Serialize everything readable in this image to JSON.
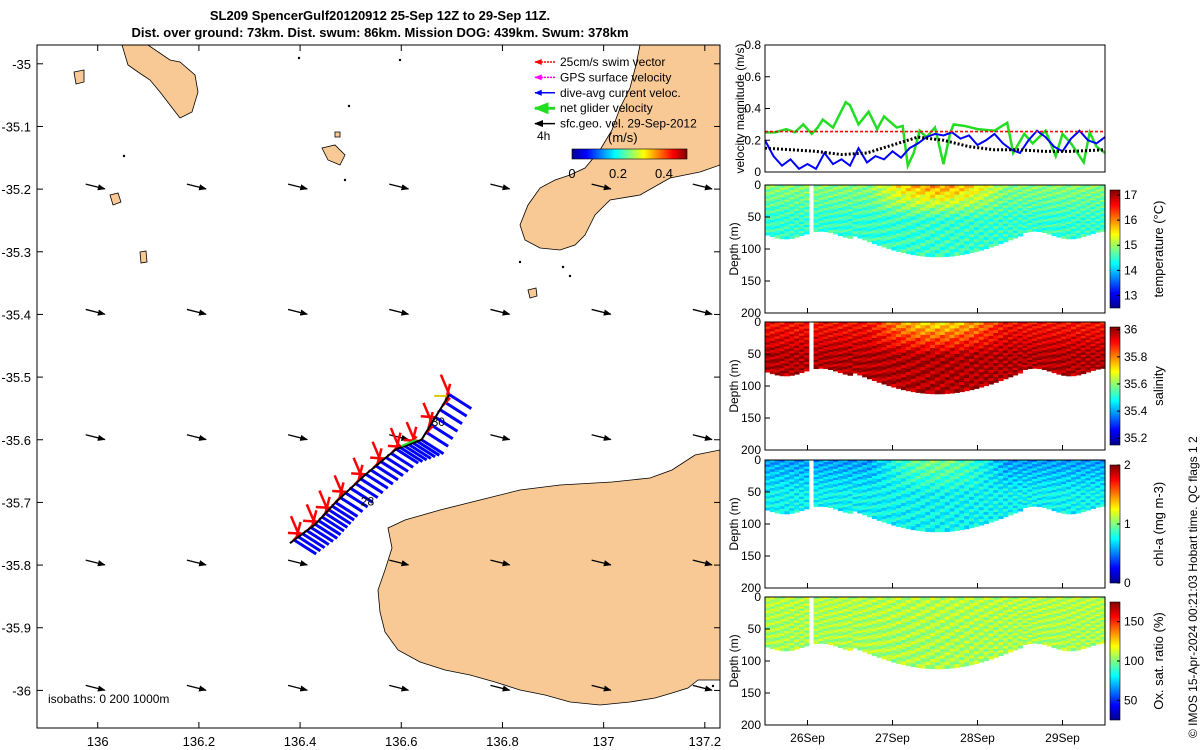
{
  "title": {
    "line1": "SL209 SpencerGulf20120912 25-Sep 12Z to 29-Sep 11Z.",
    "line2": "Dist. over ground: 73km. Dist. swum: 86km. Mission DOG: 439km. Swum: 378km"
  },
  "credit": "© IMOS 15-Apr-2024 00:21:03 Hobart time. QC flags 1 2",
  "colors": {
    "land": "#f9c995",
    "swim": "#ff0000",
    "gps": "#ff00ff",
    "current": "#0000ff",
    "net": "#22dd22",
    "geo": "#000000"
  },
  "chart_data": [
    {
      "type": "map",
      "xticks": [
        "136",
        "136.2",
        "136.4",
        "136.6",
        "136.8",
        "137",
        "137.2"
      ],
      "yticks": [
        "-35",
        "-35.1",
        "-35.2",
        "-35.3",
        "-35.4",
        "-35.5",
        "-35.6",
        "-35.7",
        "-35.8",
        "-35.9",
        "-36"
      ],
      "xlim": [
        135.88,
        137.23
      ],
      "ylim": [
        -36.06,
        -34.97
      ],
      "legend": {
        "entries": [
          {
            "label": "25cm/s swim vector",
            "color": "#ff0000",
            "style": "dotted"
          },
          {
            "label": "GPS surface velocity",
            "color": "#ff00ff",
            "style": "dotted"
          },
          {
            "label": "dive-avg current veloc.",
            "color": "#0000ff",
            "style": "solid"
          },
          {
            "label": "net glider velocity",
            "color": "#22dd22",
            "style": "solid"
          },
          {
            "label": "sfc.geo. vel. 29-Sep-2012",
            "color": "#000000",
            "style": "solid"
          }
        ],
        "placement": "top-right"
      },
      "scale_label": "4h",
      "colorbar": {
        "label": "(m/s)",
        "ticks": [
          "0",
          "0.2",
          "0.4"
        ],
        "range": [
          0,
          0.5
        ]
      },
      "day_labels": [
        {
          "text": "28",
          "lon": 136.52,
          "lat": -35.705
        },
        {
          "text": "30",
          "lon": 136.66,
          "lat": -35.578
        }
      ],
      "isobath_label": "isobaths: 0   200  1000m",
      "track": [
        [
          136.695,
          -35.528
        ],
        [
          136.64,
          -35.6
        ],
        [
          136.59,
          -35.615
        ],
        [
          136.53,
          -35.655
        ],
        [
          136.47,
          -35.7
        ],
        [
          136.43,
          -35.735
        ],
        [
          136.38,
          -35.765
        ]
      ],
      "geo_vectors": {
        "lons": [
          136.0,
          136.2,
          136.4,
          136.6,
          136.8,
          137.0,
          137.2
        ],
        "lats": [
          -35.2,
          -35.4,
          -35.6,
          -35.8,
          -36.0
        ],
        "u": 0.12,
        "v": -0.03
      }
    },
    {
      "type": "line",
      "ylabel": "velocity magnitude (m/s)",
      "ylim": [
        0,
        0.8
      ],
      "yticks": [
        "0",
        "0.2",
        "0.4",
        "0.6",
        "0.8"
      ],
      "xlim": [
        25.5,
        29.5
      ],
      "series": [
        {
          "color": "#22dd22",
          "x": [
            25.5,
            25.62,
            25.75,
            25.85,
            25.95,
            26.05,
            26.12,
            26.18,
            26.3,
            26.45,
            26.5,
            26.6,
            26.72,
            26.82,
            26.9,
            27.05,
            27.12,
            27.18,
            27.25,
            27.32,
            27.4,
            27.5,
            27.6,
            27.68,
            27.72,
            27.85,
            28.0,
            28.2,
            28.35,
            28.42,
            28.55,
            28.65,
            28.8,
            28.92,
            29.0,
            29.1,
            29.25,
            29.32,
            29.4,
            29.5
          ],
          "y": [
            0.25,
            0.25,
            0.27,
            0.25,
            0.3,
            0.24,
            0.28,
            0.33,
            0.28,
            0.44,
            0.42,
            0.3,
            0.38,
            0.27,
            0.35,
            0.28,
            0.29,
            0.04,
            0.12,
            0.26,
            0.22,
            0.28,
            0.05,
            0.25,
            0.3,
            0.29,
            0.27,
            0.26,
            0.31,
            0.12,
            0.24,
            0.18,
            0.26,
            0.1,
            0.24,
            0.18,
            0.06,
            0.25,
            0.16,
            0.12
          ]
        },
        {
          "color": "#0000ff",
          "x": [
            25.5,
            25.6,
            25.7,
            25.8,
            25.9,
            26.0,
            26.1,
            26.2,
            26.3,
            26.4,
            26.5,
            26.6,
            26.7,
            26.8,
            26.9,
            27.0,
            27.1,
            27.2,
            27.3,
            27.4,
            27.5,
            27.6,
            27.7,
            27.8,
            27.9,
            28.0,
            28.1,
            28.2,
            28.3,
            28.4,
            28.5,
            28.6,
            28.7,
            28.8,
            28.9,
            29.0,
            29.1,
            29.2,
            29.3,
            29.4,
            29.5
          ],
          "y": [
            0.2,
            0.1,
            0.04,
            0.08,
            0.02,
            0.05,
            0.02,
            0.12,
            0.05,
            0.08,
            0.04,
            0.15,
            0.06,
            0.1,
            0.08,
            0.13,
            0.09,
            0.15,
            0.18,
            0.22,
            0.24,
            0.23,
            0.25,
            0.21,
            0.23,
            0.17,
            0.2,
            0.24,
            0.18,
            0.14,
            0.12,
            0.2,
            0.26,
            0.22,
            0.16,
            0.13,
            0.21,
            0.26,
            0.2,
            0.18,
            0.22
          ]
        },
        {
          "color": "#000000",
          "x": [
            25.5,
            25.8,
            26.1,
            26.4,
            26.7,
            27.0,
            27.3,
            27.6,
            27.9,
            28.2,
            28.5,
            28.8,
            29.1,
            29.5
          ],
          "y": [
            0.15,
            0.14,
            0.13,
            0.11,
            0.12,
            0.17,
            0.22,
            0.2,
            0.16,
            0.14,
            0.14,
            0.13,
            0.13,
            0.14
          ]
        },
        {
          "color": "#ff0000",
          "x": [
            25.5,
            29.5
          ],
          "y": [
            0.255,
            0.255
          ],
          "dotted": true
        }
      ]
    },
    {
      "type": "heatmap",
      "ylabel": "Depth (m)",
      "ylim": [
        0,
        200
      ],
      "yticks": [
        "0",
        "50",
        "100",
        "150",
        "200"
      ],
      "cblabel": "temperature (°C)",
      "cbrange": [
        12.5,
        17.2
      ],
      "cbticks": [
        "13",
        "14",
        "15",
        "16",
        "17"
      ],
      "cbvalues": [
        13,
        14,
        15,
        16,
        17
      ],
      "surface": 14.9,
      "deep": 14.5,
      "warm": 15.9
    },
    {
      "type": "heatmap",
      "ylabel": "Depth (m)",
      "ylim": [
        0,
        200
      ],
      "yticks": [
        "0",
        "50",
        "100",
        "150",
        "200"
      ],
      "cblabel": "salinity",
      "cbrange": [
        35.15,
        36.02
      ],
      "cbticks": [
        "35.2",
        "35.4",
        "35.6",
        "35.8",
        "36"
      ],
      "cbvalues": [
        35.2,
        35.4,
        35.6,
        35.8,
        36.0
      ],
      "surface": 35.9,
      "deep": 35.98,
      "warm": 35.72
    },
    {
      "type": "heatmap",
      "ylabel": "Depth (m)",
      "ylim": [
        0,
        200
      ],
      "yticks": [
        "0",
        "50",
        "100",
        "150",
        "200"
      ],
      "cblabel": "chl-a (mg m-3)",
      "cbrange": [
        0,
        2
      ],
      "cbticks": [
        "0",
        "1",
        "2"
      ],
      "cbvalues": [
        0,
        1,
        2
      ],
      "surface": 0.55,
      "deep": 0.75,
      "warm": 1.0
    },
    {
      "type": "heatmap",
      "ylabel": "Depth (m)",
      "ylim": [
        0,
        200
      ],
      "yticks": [
        "0",
        "50",
        "100",
        "150",
        "200"
      ],
      "xticks": [
        "26Sep",
        "27Sep",
        "28Sep",
        "29Sep"
      ],
      "cblabel": "Ox. sat. ratio (%)",
      "cbrange": [
        25,
        175
      ],
      "cbticks": [
        "50",
        "100",
        "150"
      ],
      "cbvalues": [
        50,
        100,
        150
      ],
      "surface": 108,
      "deep": 106,
      "warm": 108
    }
  ]
}
